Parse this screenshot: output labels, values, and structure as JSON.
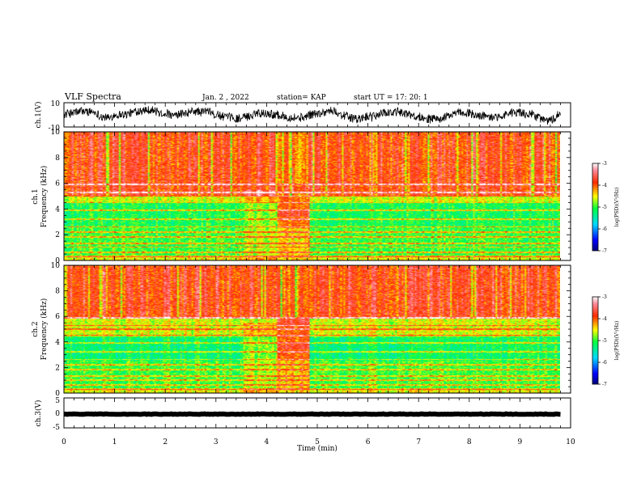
{
  "header": {
    "title": "VLF Spectra",
    "date": "Jan. 2 , 2022",
    "station": "station= KAP",
    "start": "start UT = 17: 20: 1"
  },
  "chart_data": [
    {
      "id": "ch1-waveform",
      "type": "line",
      "ylabel": "ch.1(V)",
      "ylim": [
        -10,
        10
      ],
      "yticks": [
        "10",
        "-10"
      ],
      "xlim": [
        0,
        10
      ],
      "series": [
        {
          "name": "",
          "color": "#000000"
        }
      ]
    },
    {
      "id": "ch1-spectrogram",
      "type": "heatmap",
      "ylabel_top": "ch.1",
      "ylabel": "Frequency (kHz)",
      "ylim": [
        0,
        10
      ],
      "yticks": [
        "0",
        "2",
        "4",
        "6",
        "8",
        "10"
      ],
      "xlim": [
        0,
        10
      ],
      "data_end_min": 9.8,
      "colorbar": {
        "label": "log(PSD)(V²/Hz)",
        "range": [
          -7,
          -3
        ],
        "ticks": [
          "-3",
          "-4",
          "-5",
          "-6",
          "-7"
        ]
      }
    },
    {
      "id": "ch2-spectrogram",
      "type": "heatmap",
      "ylabel_top": "ch.2",
      "ylabel": "Frequency (kHz)",
      "ylim": [
        0,
        10
      ],
      "yticks": [
        "0",
        "2",
        "4",
        "6",
        "8",
        "10"
      ],
      "xlim": [
        0,
        10
      ],
      "data_end_min": 9.8,
      "colorbar": {
        "label": "log(PSD)(V²/Hz)",
        "range": [
          -7,
          -3
        ],
        "ticks": [
          "-3",
          "-4",
          "-5",
          "-6",
          "-7"
        ]
      }
    },
    {
      "id": "ch3-waveform",
      "type": "line",
      "ylabel": "ch.3(V)",
      "ylim": [
        -5,
        5
      ],
      "yticks": [
        "5",
        "0",
        "-5"
      ],
      "xlim": [
        0,
        10
      ],
      "xlabel": "Time (min)",
      "xticks": [
        "0",
        "1",
        "2",
        "3",
        "4",
        "5",
        "6",
        "7",
        "8",
        "9",
        "10"
      ],
      "series": [
        {
          "name": "",
          "color": "#000000"
        }
      ]
    }
  ]
}
